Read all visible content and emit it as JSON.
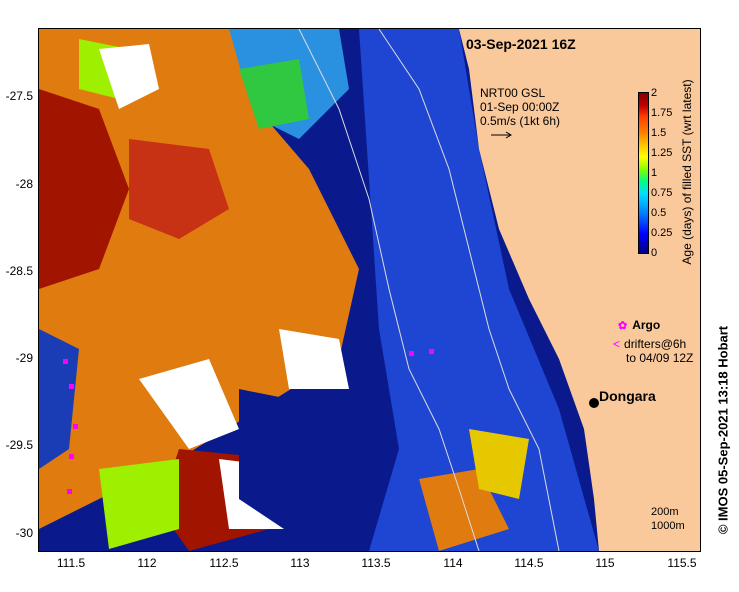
{
  "header": {
    "datetime": "03-Sep-2021 16Z"
  },
  "model_info": {
    "line1": "NRT00 GSL",
    "line2": "01-Sep 00:00Z",
    "line3": "0.5m/s (1kt 6h)"
  },
  "colorbar": {
    "title": "Age (days) of filled SST (wrt latest)",
    "ticks": [
      "2",
      "1.75",
      "1.5",
      "1.25",
      "1",
      "0.75",
      "0.5",
      "0.25",
      "0"
    ]
  },
  "y_axis": {
    "ticks": [
      "-27.5",
      "-28",
      "-28.5",
      "-29",
      "-29.5",
      "-30"
    ]
  },
  "x_axis": {
    "ticks": [
      "111.5",
      "112",
      "112.5",
      "113",
      "113.5",
      "114",
      "114.5",
      "115",
      "115.5"
    ]
  },
  "legend": {
    "argo_label": "Argo",
    "drifters_line1": "drifters@6h",
    "drifters_line2": "to 04/09 12Z"
  },
  "place": {
    "town": "Dongara"
  },
  "depth_legend": {
    "line1": "200m",
    "line2": "1000m"
  },
  "credit": "© IMOS 05-Sep-2021 13:18 Hobart",
  "colors": {
    "land": "#f9c89b",
    "deep": "#0a1a8c",
    "mid": "#1e3cc8",
    "orange": "#e07b10",
    "red": "#a01400",
    "lime": "#9ef000",
    "green": "#30c840",
    "cyan": "#00b4e6"
  }
}
